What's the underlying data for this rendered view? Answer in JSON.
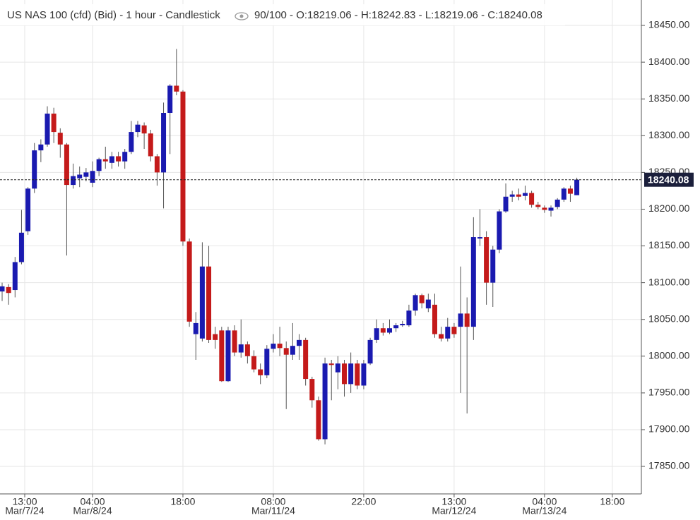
{
  "chart_data": {
    "type": "candlestick",
    "title": "US NAS 100 (cfd) (Bid) - 1 hour - Candlestick",
    "subtitle": "90/100 - O:18219.06 - H:18242.83 - L:18219.06 - C:18240.08",
    "up_color": "#1a1ab0",
    "down_color": "#c41a1a",
    "grid": true,
    "xlim": [
      -0.33,
      99
    ],
    "xticks": [
      {
        "value": 3.5,
        "label": "13:00"
      },
      {
        "value": 14,
        "label": "04:00"
      },
      {
        "value": 28,
        "label": "18:00"
      },
      {
        "value": 42,
        "label": "08:00"
      },
      {
        "value": 56,
        "label": "22:00"
      },
      {
        "value": 70,
        "label": "13:00"
      },
      {
        "value": 84,
        "label": "04:00"
      },
      {
        "value": 94.5,
        "label": "18:00"
      }
    ],
    "xtick_dates": [
      {
        "value": 3.5,
        "label": "Mar/7/24"
      },
      {
        "value": 14,
        "label": "Mar/8/24"
      },
      {
        "value": 42,
        "label": "Mar/11/24"
      },
      {
        "value": 70,
        "label": "Mar/12/24"
      },
      {
        "value": 84,
        "label": "Mar/13/24"
      }
    ],
    "ylim": [
      17812.6,
      18484.6
    ],
    "yticks": [
      {
        "value": 17850,
        "label": "17850.00"
      },
      {
        "value": 17900,
        "label": "17900.00"
      },
      {
        "value": 17950,
        "label": "17950.00"
      },
      {
        "value": 18000,
        "label": "18000.00"
      },
      {
        "value": 18050,
        "label": "18050.00"
      },
      {
        "value": 18100,
        "label": "18100.00"
      },
      {
        "value": 18150,
        "label": "18150.00"
      },
      {
        "value": 18200,
        "label": "18200.00"
      },
      {
        "value": 18250,
        "label": "18250.00"
      },
      {
        "value": 18300,
        "label": "18300.00"
      },
      {
        "value": 18350,
        "label": "18350.00"
      },
      {
        "value": 18400,
        "label": "18400.00"
      },
      {
        "value": 18450,
        "label": "18450.00"
      }
    ],
    "last_price": 18240.08,
    "open": [
      18088,
      18094,
      18090,
      18128,
      18170,
      18228,
      18280,
      18288,
      18330,
      18304,
      18288,
      18233,
      18242,
      18244,
      18236,
      18252,
      18268,
      18263,
      18272,
      18265,
      18278,
      18305,
      18314,
      18303,
      18272,
      18250,
      18331,
      18368,
      18360,
      18156,
      18030,
      18024,
      18122,
      18030,
      18035,
      17966,
      18035,
      18005,
      18016,
      18000,
      17982,
      17974,
      18010,
      18017,
      18011,
      18002,
      18014,
      18022,
      17969,
      17940,
      17887,
      17990,
      17978,
      17990,
      17962,
      17990,
      17960,
      17990,
      18022,
      18038,
      18032,
      18038,
      18042,
      18042,
      18062,
      18083,
      18065,
      18070,
      18030,
      18024,
      18040,
      18040,
      18058,
      18040,
      18160,
      18162,
      18100,
      18145,
      18197,
      18217,
      18220,
      18218,
      18222,
      18206,
      18202,
      18198,
      18203,
      18213,
      18228,
      18219.06
    ],
    "high": [
      18100,
      18098,
      18135,
      18199,
      18230,
      18290,
      18295,
      18340,
      18338,
      18310,
      18290,
      18262,
      18258,
      18256,
      18265,
      18270,
      18285,
      18278,
      18278,
      18282,
      18320,
      18320,
      18318,
      18308,
      18275,
      18345,
      18370,
      18418,
      18362,
      18160,
      18060,
      18155,
      18150,
      18040,
      18040,
      18040,
      18042,
      18050,
      18020,
      18008,
      17990,
      18015,
      18030,
      18040,
      18020,
      18045,
      18030,
      18025,
      17972,
      17945,
      17998,
      17995,
      18000,
      17995,
      18005,
      17995,
      17995,
      18025,
      18050,
      18045,
      18050,
      18045,
      18048,
      18070,
      18085,
      18085,
      18085,
      18085,
      18040,
      18052,
      18045,
      18122,
      18080,
      18189,
      18200,
      18170,
      18150,
      18200,
      18235,
      18225,
      18228,
      18232,
      18225,
      18210,
      18205,
      18205,
      18215,
      18230,
      18232,
      18242.83
    ],
    "low": [
      18075,
      18070,
      18080,
      18125,
      18165,
      18222,
      18264,
      18285,
      18290,
      18270,
      18137,
      18228,
      18230,
      18238,
      18230,
      18245,
      18255,
      18255,
      18258,
      18255,
      18275,
      18298,
      18282,
      18265,
      18232,
      18201,
      18275,
      18355,
      18150,
      18040,
      17995,
      18020,
      18018,
      18010,
      17965,
      17965,
      18000,
      17998,
      17990,
      17978,
      17962,
      17970,
      18005,
      18000,
      17928,
      17995,
      17995,
      17960,
      17930,
      17885,
      17880,
      17940,
      17955,
      17945,
      17950,
      17955,
      17955,
      17988,
      18018,
      18028,
      18030,
      18033,
      18040,
      18040,
      18055,
      18065,
      18060,
      18025,
      18020,
      18020,
      18025,
      17950,
      17922,
      18022,
      18150,
      18070,
      18067,
      18140,
      18195,
      18210,
      18212,
      18212,
      18202,
      18200,
      18195,
      18190,
      18200,
      18210,
      18210,
      18219.06
    ],
    "close": [
      18095,
      18086,
      18128,
      18168,
      18228,
      18280,
      18288,
      18330,
      18305,
      18288,
      18233,
      18245,
      18247,
      18250,
      18252,
      18268,
      18265,
      18272,
      18265,
      18278,
      18305,
      18315,
      18303,
      18272,
      18250,
      18331,
      18368,
      18360,
      18156,
      18047,
      18045,
      18122,
      18022,
      18022,
      17966,
      18035,
      18005,
      18016,
      18000,
      17982,
      17974,
      18010,
      18017,
      18011,
      18002,
      18014,
      18022,
      17969,
      17940,
      17887,
      17990,
      17988,
      17990,
      17962,
      17990,
      17960,
      17990,
      18022,
      18038,
      18032,
      18038,
      18042,
      18044,
      18062,
      18083,
      18072,
      18077,
      18030,
      18024,
      18040,
      18030,
      18058,
      18040,
      18162,
      18162,
      18100,
      18145,
      18197,
      18217,
      18220,
      18217,
      18222,
      18206,
      18203,
      18199,
      18202,
      18213,
      18228,
      18221,
      18240.08
    ]
  }
}
